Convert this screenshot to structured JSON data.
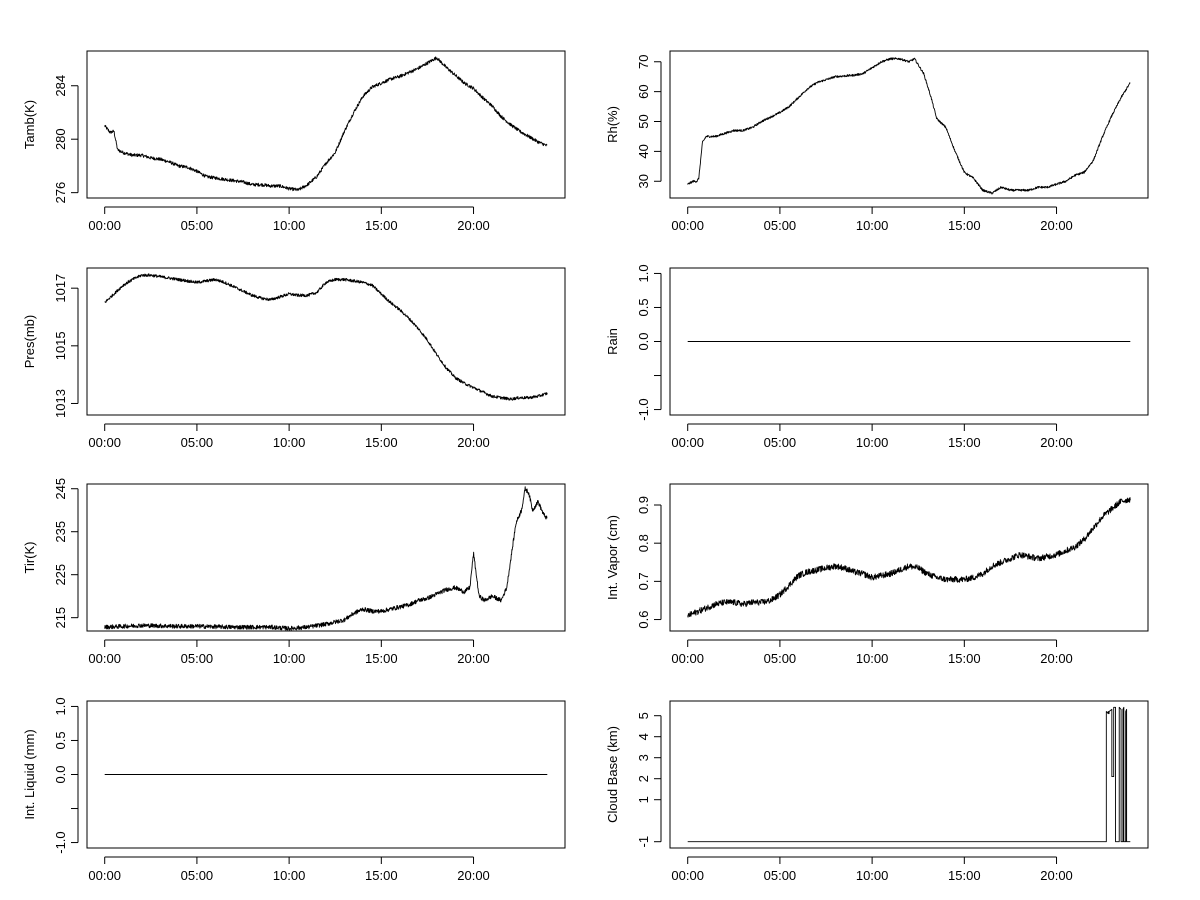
{
  "figure": {
    "background": "#ffffff",
    "line_color": "#000000"
  },
  "chart_data": [
    {
      "type": "line",
      "ylabel": "Tamb(K)",
      "x_ticks": [
        "00:00",
        "05:00",
        "10:00",
        "15:00",
        "20:00"
      ],
      "x_tick_values": [
        0,
        5,
        10,
        15,
        20
      ],
      "xlim": [
        -0.96,
        24.96
      ],
      "ylim": [
        275.6,
        286.6
      ],
      "y_ticks": [
        276,
        280,
        284
      ],
      "y_tick_labels": [
        "276",
        "280",
        "284"
      ],
      "x": [
        0,
        0.3,
        0.5,
        0.7,
        1,
        1.5,
        2,
        2.5,
        3,
        3.5,
        4,
        4.5,
        5,
        5.5,
        6,
        6.5,
        7,
        7.5,
        8,
        8.5,
        9,
        9.5,
        10,
        10.5,
        11,
        11.5,
        12,
        12.5,
        13,
        13.5,
        14,
        14.5,
        15,
        15.5,
        16,
        16.5,
        17,
        17.5,
        18,
        18.5,
        19,
        19.5,
        20,
        20.5,
        21,
        21.5,
        22,
        22.5,
        23,
        23.5,
        24
      ],
      "y": [
        281,
        280.5,
        280.6,
        279.2,
        279,
        278.8,
        278.8,
        278.6,
        278.5,
        278.3,
        278,
        277.9,
        277.6,
        277.2,
        277.1,
        277,
        276.9,
        276.8,
        276.6,
        276.6,
        276.5,
        276.5,
        276.3,
        276.2,
        276.6,
        277.2,
        278.2,
        279,
        280.6,
        282,
        283.2,
        283.9,
        284.2,
        284.5,
        284.7,
        285,
        285.3,
        285.7,
        286.1,
        285.4,
        284.8,
        284.2,
        283.8,
        283.1,
        282.5,
        281.7,
        281.1,
        280.6,
        280.2,
        279.8,
        279.5
      ],
      "noise": 0.12
    },
    {
      "type": "line",
      "ylabel": "Rh(%)",
      "x_ticks": [
        "00:00",
        "05:00",
        "10:00",
        "15:00",
        "20:00"
      ],
      "x_tick_values": [
        0,
        5,
        10,
        15,
        20
      ],
      "xlim": [
        -0.96,
        24.96
      ],
      "ylim": [
        24.4,
        73.6
      ],
      "y_ticks": [
        30,
        40,
        50,
        60,
        70
      ],
      "y_tick_labels": [
        "30",
        "40",
        "50",
        "60",
        "70"
      ],
      "x": [
        0,
        0.3,
        0.5,
        0.6,
        0.8,
        1,
        1.5,
        2,
        2.5,
        3,
        3.5,
        4,
        4.5,
        5,
        5.5,
        6,
        6.5,
        7,
        8,
        9,
        9.5,
        10,
        10.5,
        11,
        11.5,
        12,
        12.3,
        12.8,
        13.2,
        13.5,
        14,
        14.5,
        15,
        15.5,
        16,
        16.5,
        17,
        17.5,
        18,
        18.5,
        19,
        19.5,
        20,
        20.5,
        21,
        21.5,
        22,
        22.5,
        23,
        23.5,
        24
      ],
      "y": [
        29,
        30,
        30,
        31,
        43,
        45,
        45,
        46,
        47,
        47,
        48,
        50,
        51.5,
        53,
        55,
        58,
        61,
        63,
        65,
        65.5,
        66,
        68,
        70,
        71,
        71,
        70,
        71,
        66,
        58,
        51,
        48,
        40,
        33,
        31,
        27,
        26,
        28,
        27,
        27,
        27,
        28,
        28,
        29,
        30,
        32,
        33,
        37,
        45,
        52,
        58,
        63
      ],
      "noise": 0.35
    },
    {
      "type": "line",
      "ylabel": "Pres(mb)",
      "x_ticks": [
        "00:00",
        "05:00",
        "10:00",
        "15:00",
        "20:00"
      ],
      "x_tick_values": [
        0,
        5,
        10,
        15,
        20
      ],
      "xlim": [
        -0.96,
        24.96
      ],
      "ylim": [
        1012.6,
        1017.7
      ],
      "y_ticks": [
        1013,
        1015,
        1017
      ],
      "y_tick_labels": [
        "1013",
        "1015",
        "1017"
      ],
      "x": [
        0,
        0.5,
        1,
        1.5,
        2,
        2.5,
        3,
        3.5,
        4,
        4.5,
        5,
        5.5,
        6,
        6.5,
        7,
        7.5,
        8,
        8.5,
        9,
        9.5,
        10,
        10.5,
        11,
        11.5,
        12,
        12.5,
        13,
        13.5,
        14,
        14.5,
        15,
        15.5,
        16,
        16.5,
        17,
        17.5,
        18,
        18.5,
        19,
        19.5,
        20,
        20.5,
        21,
        21.5,
        22,
        22.5,
        23,
        23.5,
        24
      ],
      "y": [
        1016.5,
        1016.8,
        1017.1,
        1017.3,
        1017.45,
        1017.45,
        1017.4,
        1017.35,
        1017.3,
        1017.25,
        1017.2,
        1017.25,
        1017.3,
        1017.2,
        1017.05,
        1016.9,
        1016.75,
        1016.65,
        1016.6,
        1016.7,
        1016.8,
        1016.75,
        1016.75,
        1016.85,
        1017.2,
        1017.3,
        1017.3,
        1017.25,
        1017.2,
        1017.1,
        1016.8,
        1016.5,
        1016.25,
        1015.95,
        1015.6,
        1015.2,
        1014.7,
        1014.25,
        1013.9,
        1013.7,
        1013.55,
        1013.4,
        1013.25,
        1013.2,
        1013.15,
        1013.2,
        1013.2,
        1013.25,
        1013.35
      ],
      "noise": 0.05
    },
    {
      "type": "line",
      "ylabel": "Rain",
      "x_ticks": [
        "00:00",
        "05:00",
        "10:00",
        "15:00",
        "20:00"
      ],
      "x_tick_values": [
        0,
        5,
        10,
        15,
        20
      ],
      "xlim": [
        -0.96,
        24.96
      ],
      "ylim": [
        -1.08,
        1.08
      ],
      "y_ticks": [
        -1.0,
        -0.5,
        0.0,
        0.5,
        1.0
      ],
      "y_tick_labels": [
        "-1.0",
        "",
        "0.0",
        "0.5",
        "1.0"
      ],
      "x": [
        0,
        24
      ],
      "y": [
        0,
        0
      ],
      "noise": 0
    },
    {
      "type": "line",
      "ylabel": "Tir(K)",
      "x_ticks": [
        "00:00",
        "05:00",
        "10:00",
        "15:00",
        "20:00"
      ],
      "x_tick_values": [
        0,
        5,
        10,
        15,
        20
      ],
      "xlim": [
        -0.96,
        24.96
      ],
      "ylim": [
        211.9,
        246.1
      ],
      "y_ticks": [
        215,
        225,
        235,
        245
      ],
      "y_tick_labels": [
        "215",
        "225",
        "235",
        "245"
      ],
      "x": [
        0,
        1,
        2,
        3,
        4,
        5,
        6,
        7,
        8,
        9,
        10,
        11,
        12,
        13,
        13.5,
        14,
        14.5,
        15,
        15.5,
        16,
        16.5,
        17,
        17.5,
        18,
        18.5,
        19,
        19.5,
        19.8,
        20,
        20.3,
        20.6,
        21,
        21.5,
        21.8,
        22,
        22.3,
        22.6,
        22.8,
        23,
        23.2,
        23.5,
        23.8,
        24
      ],
      "y": [
        212.8,
        213,
        213.2,
        213.1,
        213,
        213,
        212.9,
        212.8,
        212.8,
        212.8,
        212.5,
        212.8,
        213.5,
        214.5,
        216,
        217,
        216.5,
        216.5,
        217,
        217.5,
        218,
        219,
        219.5,
        220.5,
        221.5,
        222,
        221,
        222,
        230,
        220,
        219,
        220,
        219,
        222,
        228,
        237,
        240,
        245,
        244,
        240,
        242,
        239,
        238
      ],
      "noise": 0.5
    },
    {
      "type": "line",
      "ylabel": "Int. Vapor (cm)",
      "x_ticks": [
        "00:00",
        "05:00",
        "10:00",
        "15:00",
        "20:00"
      ],
      "x_tick_values": [
        0,
        5,
        10,
        15,
        20
      ],
      "xlim": [
        -0.96,
        24.96
      ],
      "ylim": [
        0.57,
        0.955
      ],
      "y_ticks": [
        0.6,
        0.7,
        0.8,
        0.9
      ],
      "y_tick_labels": [
        "0.6",
        "0.7",
        "0.8",
        "0.9"
      ],
      "x": [
        0,
        0.5,
        1,
        1.5,
        2,
        2.5,
        3,
        3.5,
        4,
        4.5,
        5,
        5.5,
        6,
        6.5,
        7,
        7.5,
        8,
        8.5,
        9,
        9.5,
        10,
        10.5,
        11,
        11.5,
        12,
        12.5,
        13,
        13.5,
        14,
        14.5,
        15,
        15.5,
        16,
        16.5,
        17,
        17.5,
        18,
        18.5,
        19,
        19.5,
        20,
        20.5,
        21,
        21.5,
        22,
        22.5,
        23,
        23.5,
        24
      ],
      "y": [
        0.61,
        0.62,
        0.63,
        0.64,
        0.645,
        0.645,
        0.64,
        0.645,
        0.645,
        0.65,
        0.665,
        0.69,
        0.715,
        0.725,
        0.73,
        0.735,
        0.74,
        0.735,
        0.725,
        0.72,
        0.71,
        0.715,
        0.72,
        0.73,
        0.74,
        0.735,
        0.72,
        0.71,
        0.705,
        0.705,
        0.705,
        0.71,
        0.72,
        0.74,
        0.75,
        0.76,
        0.77,
        0.765,
        0.76,
        0.765,
        0.77,
        0.78,
        0.79,
        0.81,
        0.84,
        0.87,
        0.89,
        0.91,
        0.915
      ],
      "noise": 0.008
    },
    {
      "type": "line",
      "ylabel": "Int. Liquid (mm)",
      "x_ticks": [
        "00:00",
        "05:00",
        "10:00",
        "15:00",
        "20:00"
      ],
      "x_tick_values": [
        0,
        5,
        10,
        15,
        20
      ],
      "xlim": [
        -0.96,
        24.96
      ],
      "ylim": [
        -1.08,
        1.08
      ],
      "y_ticks": [
        -1.0,
        -0.5,
        0.0,
        0.5,
        1.0
      ],
      "y_tick_labels": [
        "-1.0",
        "",
        "0.0",
        "0.5",
        "1.0"
      ],
      "x": [
        0,
        24
      ],
      "y": [
        0,
        0
      ],
      "noise": 0
    },
    {
      "type": "line",
      "ylabel": "Cloud Base (km)",
      "x_ticks": [
        "00:00",
        "05:00",
        "10:00",
        "15:00",
        "20:00"
      ],
      "x_tick_values": [
        0,
        5,
        10,
        15,
        20
      ],
      "xlim": [
        -0.96,
        24.96
      ],
      "ylim": [
        -1.3,
        5.7
      ],
      "y_ticks": [
        -1,
        1,
        2,
        3,
        4,
        5
      ],
      "y_tick_labels": [
        "-1",
        "1",
        "2",
        "3",
        "4",
        "5"
      ],
      "x": [
        0,
        22.7,
        22.7,
        22.8,
        22.8,
        22.85,
        22.85,
        23.0,
        23.0,
        23.1,
        23.1,
        23.2,
        23.2,
        23.4,
        23.4,
        23.5,
        23.5,
        23.6,
        23.6,
        23.65,
        23.65,
        23.75,
        23.75,
        23.8,
        23.8,
        24
      ],
      "y": [
        -1,
        -1,
        5.2,
        5.1,
        5.2,
        5.1,
        5.2,
        5.3,
        2.1,
        2.1,
        5.4,
        5.4,
        -1,
        -1,
        5.4,
        5.3,
        -1,
        -1,
        5.3,
        5.4,
        -1,
        -1,
        5.2,
        5.3,
        -1,
        -1
      ],
      "noise": 0
    }
  ]
}
